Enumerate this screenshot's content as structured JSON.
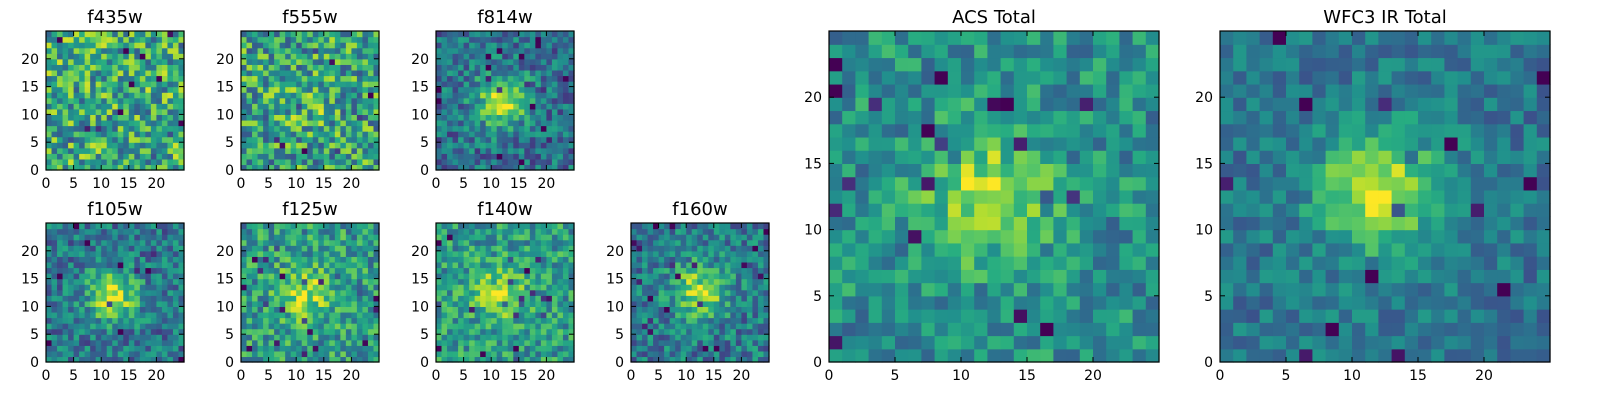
{
  "chart_data": [
    {
      "type": "heatmap",
      "title": "f435w",
      "colormap": "viridis",
      "xlim": [
        0,
        25
      ],
      "ylim": [
        0,
        25
      ],
      "xticks": [
        0,
        5,
        10,
        15,
        20
      ],
      "yticks": [
        0,
        5,
        10,
        15,
        20
      ],
      "grid_size": 25,
      "center": [
        12,
        12
      ],
      "peak": 0.0,
      "base": 0.62,
      "noise": 0.32,
      "seed": 11
    },
    {
      "type": "heatmap",
      "title": "f555w",
      "colormap": "viridis",
      "xlim": [
        0,
        25
      ],
      "ylim": [
        0,
        25
      ],
      "xticks": [
        0,
        5,
        10,
        15,
        20
      ],
      "yticks": [
        0,
        5,
        10,
        15,
        20
      ],
      "grid_size": 25,
      "center": [
        12,
        12
      ],
      "peak": 0.1,
      "base": 0.58,
      "noise": 0.32,
      "seed": 23
    },
    {
      "type": "heatmap",
      "title": "f814w",
      "colormap": "viridis",
      "xlim": [
        0,
        25
      ],
      "ylim": [
        0,
        25
      ],
      "xticks": [
        0,
        5,
        10,
        15,
        20
      ],
      "yticks": [
        0,
        5,
        10,
        15,
        20
      ],
      "grid_size": 25,
      "center": [
        12,
        12.5
      ],
      "peak": 0.55,
      "base": 0.38,
      "noise": 0.22,
      "seed": 37
    },
    {
      "type": "heatmap",
      "title": "f105w",
      "colormap": "viridis",
      "xlim": [
        0,
        25
      ],
      "ylim": [
        0,
        25
      ],
      "xticks": [
        0,
        5,
        10,
        15,
        20
      ],
      "yticks": [
        0,
        5,
        10,
        15,
        20
      ],
      "grid_size": 25,
      "center": [
        12,
        12
      ],
      "peak": 0.5,
      "base": 0.4,
      "noise": 0.22,
      "seed": 41
    },
    {
      "type": "heatmap",
      "title": "f125w",
      "colormap": "viridis",
      "xlim": [
        0,
        25
      ],
      "ylim": [
        0,
        25
      ],
      "xticks": [
        0,
        5,
        10,
        15,
        20
      ],
      "yticks": [
        0,
        5,
        10,
        15,
        20
      ],
      "grid_size": 25,
      "center": [
        11.5,
        12.5
      ],
      "peak": 0.35,
      "base": 0.55,
      "noise": 0.24,
      "seed": 53
    },
    {
      "type": "heatmap",
      "title": "f140w",
      "colormap": "viridis",
      "xlim": [
        0,
        25
      ],
      "ylim": [
        0,
        25
      ],
      "xticks": [
        0,
        5,
        10,
        15,
        20
      ],
      "yticks": [
        0,
        5,
        10,
        15,
        20
      ],
      "grid_size": 25,
      "center": [
        11.5,
        12.5
      ],
      "peak": 0.35,
      "base": 0.55,
      "noise": 0.22,
      "seed": 67
    },
    {
      "type": "heatmap",
      "title": "f160w",
      "colormap": "viridis",
      "xlim": [
        0,
        25
      ],
      "ylim": [
        0,
        25
      ],
      "xticks": [
        0,
        5,
        10,
        15,
        20
      ],
      "yticks": [
        0,
        5,
        10,
        15,
        20
      ],
      "grid_size": 25,
      "center": [
        12.5,
        13
      ],
      "peak": 0.5,
      "base": 0.42,
      "noise": 0.22,
      "seed": 79
    },
    {
      "type": "heatmap",
      "title": "ACS Total",
      "colormap": "viridis",
      "xlim": [
        0,
        25
      ],
      "ylim": [
        0,
        25
      ],
      "xticks": [
        0,
        5,
        10,
        15,
        20
      ],
      "yticks": [
        0,
        5,
        10,
        15,
        20
      ],
      "grid_size": 25,
      "center": [
        12,
        12.5
      ],
      "peak": 0.4,
      "base": 0.5,
      "noise": 0.2,
      "seed": 83
    },
    {
      "type": "heatmap",
      "title": "WFC3 IR Total",
      "colormap": "viridis",
      "xlim": [
        0,
        25
      ],
      "ylim": [
        0,
        25
      ],
      "xticks": [
        0,
        5,
        10,
        15,
        20
      ],
      "yticks": [
        0,
        5,
        10,
        15,
        20
      ],
      "grid_size": 25,
      "center": [
        12,
        13
      ],
      "peak": 0.55,
      "base": 0.4,
      "noise": 0.15,
      "seed": 97
    }
  ]
}
